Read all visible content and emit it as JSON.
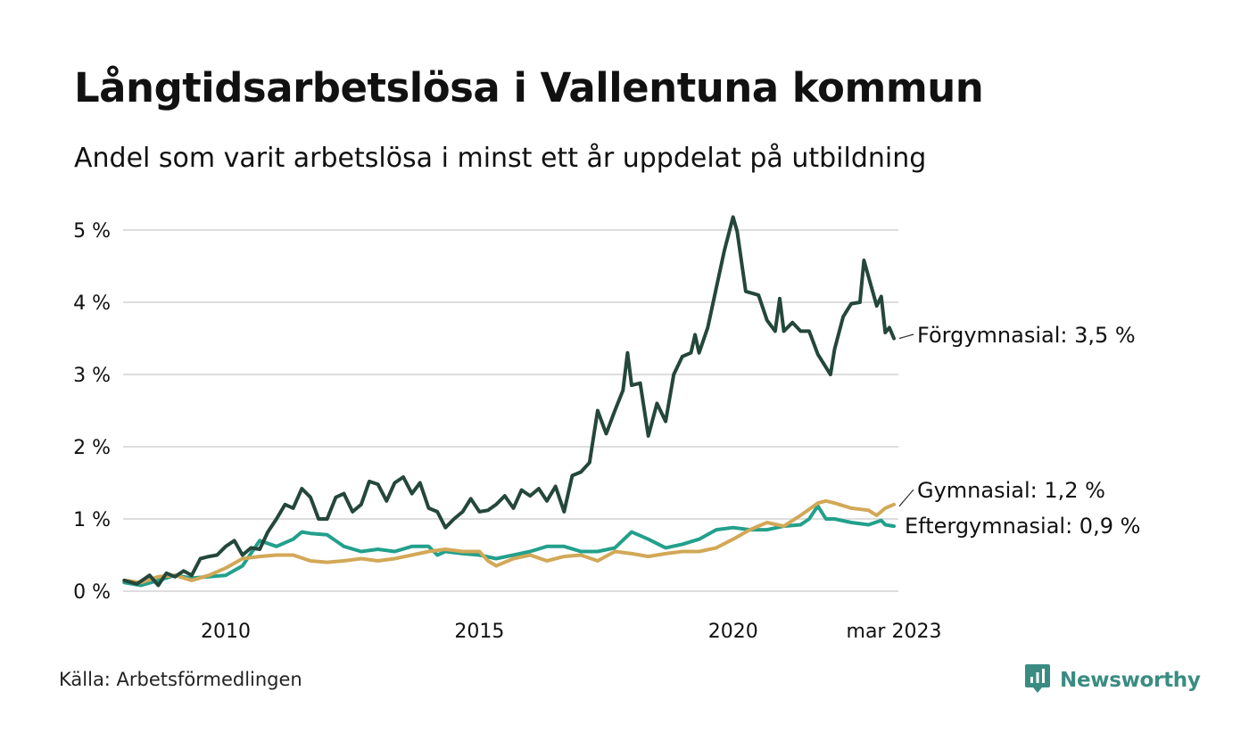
{
  "header": {
    "title": "Långtidsarbetslösa i Vallentuna kommun",
    "subtitle": "Andel som varit arbetslösa i minst ett år uppdelat på utbildning"
  },
  "footer": {
    "source": "Källa: Arbetsförmedlingen",
    "brand": "Newsworthy"
  },
  "colors": {
    "forgymnasial": "#24473a",
    "gymnasial": "#d2a857",
    "eftergymnasial": "#22a08c",
    "grid": "#dddddd",
    "brand": "#3a8c82"
  },
  "icons": [
    "newsworthy-logo-icon"
  ],
  "chart_data": {
    "type": "line",
    "title": "Långtidsarbetslösa i Vallentuna kommun",
    "subtitle": "Andel som varit arbetslösa i minst ett år uppdelat på utbildning",
    "ylim": [
      0,
      5.2
    ],
    "y_ticks": [
      0,
      1,
      2,
      3,
      4,
      5
    ],
    "y_tick_labels": [
      "0 %",
      "1 %",
      "2 %",
      "3 %",
      "4 %",
      "5 %"
    ],
    "x_range": [
      2008.0,
      2023.2
    ],
    "x_ticks": [
      2010,
      2015,
      2020,
      2023.17
    ],
    "x_tick_labels": [
      "2010",
      "2015",
      "2020",
      "mar 2023"
    ],
    "grid": true,
    "series": [
      {
        "name": "Förgymnasial",
        "end_label": "Förgymnasial: 3,5 %",
        "color": "#24473a",
        "points": [
          [
            2008.0,
            0.15
          ],
          [
            2008.25,
            0.1
          ],
          [
            2008.5,
            0.22
          ],
          [
            2008.67,
            0.08
          ],
          [
            2008.83,
            0.25
          ],
          [
            2009.0,
            0.2
          ],
          [
            2009.17,
            0.28
          ],
          [
            2009.33,
            0.22
          ],
          [
            2009.5,
            0.45
          ],
          [
            2009.67,
            0.48
          ],
          [
            2009.83,
            0.5
          ],
          [
            2010.0,
            0.62
          ],
          [
            2010.17,
            0.7
          ],
          [
            2010.33,
            0.5
          ],
          [
            2010.5,
            0.6
          ],
          [
            2010.67,
            0.58
          ],
          [
            2010.83,
            0.82
          ],
          [
            2011.0,
            1.0
          ],
          [
            2011.17,
            1.2
          ],
          [
            2011.33,
            1.15
          ],
          [
            2011.5,
            1.42
          ],
          [
            2011.67,
            1.3
          ],
          [
            2011.83,
            1.0
          ],
          [
            2012.0,
            1.0
          ],
          [
            2012.17,
            1.3
          ],
          [
            2012.33,
            1.35
          ],
          [
            2012.5,
            1.1
          ],
          [
            2012.67,
            1.2
          ],
          [
            2012.83,
            1.52
          ],
          [
            2013.0,
            1.48
          ],
          [
            2013.17,
            1.25
          ],
          [
            2013.33,
            1.5
          ],
          [
            2013.5,
            1.58
          ],
          [
            2013.67,
            1.35
          ],
          [
            2013.83,
            1.5
          ],
          [
            2014.0,
            1.15
          ],
          [
            2014.17,
            1.1
          ],
          [
            2014.33,
            0.88
          ],
          [
            2014.5,
            1.0
          ],
          [
            2014.67,
            1.1
          ],
          [
            2014.83,
            1.28
          ],
          [
            2015.0,
            1.1
          ],
          [
            2015.17,
            1.12
          ],
          [
            2015.33,
            1.2
          ],
          [
            2015.5,
            1.32
          ],
          [
            2015.67,
            1.15
          ],
          [
            2015.83,
            1.4
          ],
          [
            2016.0,
            1.32
          ],
          [
            2016.17,
            1.42
          ],
          [
            2016.33,
            1.25
          ],
          [
            2016.5,
            1.45
          ],
          [
            2016.67,
            1.1
          ],
          [
            2016.83,
            1.6
          ],
          [
            2017.0,
            1.65
          ],
          [
            2017.17,
            1.78
          ],
          [
            2017.33,
            2.5
          ],
          [
            2017.5,
            2.18
          ],
          [
            2017.67,
            2.5
          ],
          [
            2017.83,
            2.78
          ],
          [
            2017.92,
            3.3
          ],
          [
            2018.0,
            2.85
          ],
          [
            2018.17,
            2.88
          ],
          [
            2018.33,
            2.15
          ],
          [
            2018.5,
            2.6
          ],
          [
            2018.67,
            2.35
          ],
          [
            2018.83,
            3.0
          ],
          [
            2019.0,
            3.25
          ],
          [
            2019.17,
            3.3
          ],
          [
            2019.25,
            3.55
          ],
          [
            2019.33,
            3.3
          ],
          [
            2019.5,
            3.65
          ],
          [
            2019.67,
            4.2
          ],
          [
            2019.83,
            4.72
          ],
          [
            2020.0,
            5.18
          ],
          [
            2020.08,
            4.98
          ],
          [
            2020.25,
            4.15
          ],
          [
            2020.5,
            4.1
          ],
          [
            2020.67,
            3.75
          ],
          [
            2020.83,
            3.6
          ],
          [
            2020.92,
            4.05
          ],
          [
            2021.0,
            3.6
          ],
          [
            2021.17,
            3.72
          ],
          [
            2021.33,
            3.6
          ],
          [
            2021.5,
            3.6
          ],
          [
            2021.67,
            3.28
          ],
          [
            2021.83,
            3.1
          ],
          [
            2021.92,
            3.0
          ],
          [
            2022.0,
            3.35
          ],
          [
            2022.17,
            3.8
          ],
          [
            2022.33,
            3.98
          ],
          [
            2022.5,
            4.0
          ],
          [
            2022.58,
            4.58
          ],
          [
            2022.67,
            4.35
          ],
          [
            2022.83,
            3.95
          ],
          [
            2022.92,
            4.08
          ],
          [
            2023.0,
            3.58
          ],
          [
            2023.08,
            3.65
          ],
          [
            2023.17,
            3.5
          ]
        ]
      },
      {
        "name": "Gymnasial",
        "end_label": "Gymnasial: 1,2 %",
        "color": "#d2a857",
        "points": [
          [
            2008.0,
            0.15
          ],
          [
            2008.33,
            0.12
          ],
          [
            2008.67,
            0.2
          ],
          [
            2009.0,
            0.22
          ],
          [
            2009.33,
            0.15
          ],
          [
            2009.67,
            0.22
          ],
          [
            2010.0,
            0.32
          ],
          [
            2010.33,
            0.45
          ],
          [
            2010.67,
            0.48
          ],
          [
            2011.0,
            0.5
          ],
          [
            2011.33,
            0.5
          ],
          [
            2011.67,
            0.42
          ],
          [
            2012.0,
            0.4
          ],
          [
            2012.33,
            0.42
          ],
          [
            2012.67,
            0.45
          ],
          [
            2013.0,
            0.42
          ],
          [
            2013.33,
            0.45
          ],
          [
            2013.67,
            0.5
          ],
          [
            2014.0,
            0.55
          ],
          [
            2014.33,
            0.58
          ],
          [
            2014.67,
            0.55
          ],
          [
            2015.0,
            0.55
          ],
          [
            2015.17,
            0.42
          ],
          [
            2015.33,
            0.35
          ],
          [
            2015.67,
            0.45
          ],
          [
            2016.0,
            0.5
          ],
          [
            2016.33,
            0.42
          ],
          [
            2016.67,
            0.48
          ],
          [
            2017.0,
            0.5
          ],
          [
            2017.33,
            0.42
          ],
          [
            2017.67,
            0.55
          ],
          [
            2018.0,
            0.52
          ],
          [
            2018.33,
            0.48
          ],
          [
            2018.67,
            0.52
          ],
          [
            2019.0,
            0.55
          ],
          [
            2019.33,
            0.55
          ],
          [
            2019.67,
            0.6
          ],
          [
            2020.0,
            0.72
          ],
          [
            2020.33,
            0.85
          ],
          [
            2020.67,
            0.95
          ],
          [
            2021.0,
            0.9
          ],
          [
            2021.33,
            1.05
          ],
          [
            2021.67,
            1.22
          ],
          [
            2021.83,
            1.25
          ],
          [
            2022.0,
            1.22
          ],
          [
            2022.33,
            1.15
          ],
          [
            2022.67,
            1.12
          ],
          [
            2022.83,
            1.05
          ],
          [
            2023.0,
            1.15
          ],
          [
            2023.17,
            1.2
          ]
        ]
      },
      {
        "name": "Eftergymnasial",
        "end_label": "Eftergymnasial: 0,9 %",
        "color": "#22a08c",
        "points": [
          [
            2008.0,
            0.12
          ],
          [
            2008.33,
            0.08
          ],
          [
            2008.67,
            0.15
          ],
          [
            2009.0,
            0.22
          ],
          [
            2009.33,
            0.18
          ],
          [
            2009.67,
            0.2
          ],
          [
            2010.0,
            0.22
          ],
          [
            2010.33,
            0.35
          ],
          [
            2010.67,
            0.7
          ],
          [
            2011.0,
            0.62
          ],
          [
            2011.33,
            0.72
          ],
          [
            2011.5,
            0.82
          ],
          [
            2011.67,
            0.8
          ],
          [
            2012.0,
            0.78
          ],
          [
            2012.33,
            0.62
          ],
          [
            2012.67,
            0.55
          ],
          [
            2013.0,
            0.58
          ],
          [
            2013.33,
            0.55
          ],
          [
            2013.67,
            0.62
          ],
          [
            2014.0,
            0.62
          ],
          [
            2014.17,
            0.5
          ],
          [
            2014.33,
            0.55
          ],
          [
            2014.67,
            0.52
          ],
          [
            2015.0,
            0.5
          ],
          [
            2015.33,
            0.45
          ],
          [
            2015.67,
            0.5
          ],
          [
            2016.0,
            0.55
          ],
          [
            2016.33,
            0.62
          ],
          [
            2016.67,
            0.62
          ],
          [
            2017.0,
            0.55
          ],
          [
            2017.33,
            0.55
          ],
          [
            2017.67,
            0.6
          ],
          [
            2018.0,
            0.82
          ],
          [
            2018.33,
            0.72
          ],
          [
            2018.67,
            0.6
          ],
          [
            2019.0,
            0.65
          ],
          [
            2019.33,
            0.72
          ],
          [
            2019.67,
            0.85
          ],
          [
            2020.0,
            0.88
          ],
          [
            2020.33,
            0.85
          ],
          [
            2020.67,
            0.85
          ],
          [
            2021.0,
            0.9
          ],
          [
            2021.33,
            0.92
          ],
          [
            2021.5,
            1.0
          ],
          [
            2021.67,
            1.18
          ],
          [
            2021.83,
            1.0
          ],
          [
            2022.0,
            1.0
          ],
          [
            2022.33,
            0.95
          ],
          [
            2022.67,
            0.92
          ],
          [
            2022.92,
            0.98
          ],
          [
            2023.0,
            0.92
          ],
          [
            2023.17,
            0.9
          ]
        ]
      }
    ]
  }
}
